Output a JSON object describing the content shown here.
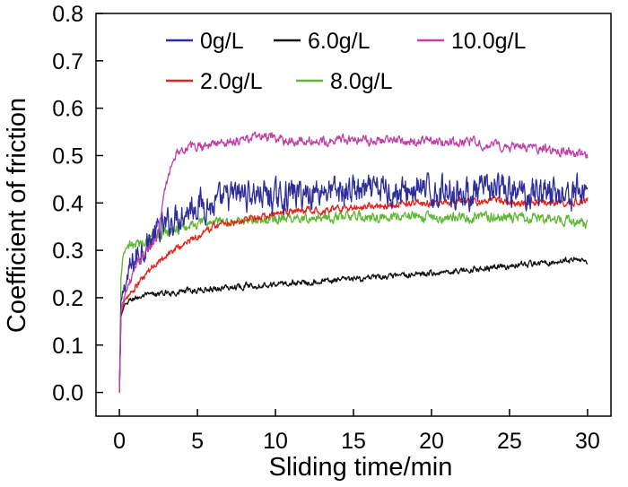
{
  "chart_data": {
    "type": "line",
    "title": "",
    "xlabel": "Sliding time/min",
    "ylabel": "Coefficient of friction",
    "xlim": [
      -1.5,
      31.5
    ],
    "ylim": [
      -0.05,
      0.8
    ],
    "xticks": [
      0,
      5,
      10,
      15,
      20,
      25,
      30
    ],
    "xtick_labels": [
      "0",
      "5",
      "10",
      "15",
      "20",
      "25",
      "30"
    ],
    "yticks": [
      0.0,
      0.1,
      0.2,
      0.3,
      0.4,
      0.5,
      0.6,
      0.7,
      0.8
    ],
    "ytick_labels": [
      "0.0",
      "0.1",
      "0.2",
      "0.3",
      "0.4",
      "0.5",
      "0.6",
      "0.7",
      "0.8"
    ],
    "grid": false,
    "legend_position": "top",
    "series": [
      {
        "name": "0g/L",
        "color": "#2e2e9a",
        "x": [
          0,
          0.1,
          0.3,
          0.5,
          1,
          1.5,
          2,
          2.5,
          3,
          3.5,
          4,
          4.5,
          5,
          5.5,
          6,
          7,
          8,
          9,
          10,
          11,
          12,
          13,
          14,
          15,
          16,
          17,
          18,
          19,
          20,
          21,
          22,
          23,
          24,
          25,
          26,
          27,
          28,
          29,
          30
        ],
        "y": [
          0.0,
          0.18,
          0.22,
          0.24,
          0.28,
          0.31,
          0.32,
          0.34,
          0.35,
          0.37,
          0.38,
          0.39,
          0.4,
          0.4,
          0.39,
          0.41,
          0.42,
          0.42,
          0.41,
          0.42,
          0.42,
          0.43,
          0.42,
          0.43,
          0.42,
          0.43,
          0.42,
          0.43,
          0.42,
          0.43,
          0.42,
          0.42,
          0.43,
          0.42,
          0.42,
          0.43,
          0.42,
          0.42,
          0.43
        ],
        "noise": 0.035
      },
      {
        "name": "6.0g/L",
        "color": "#111111",
        "x": [
          0,
          0.1,
          0.3,
          0.5,
          1,
          2,
          3,
          4,
          5,
          6,
          7,
          8,
          9,
          10,
          11,
          12,
          13,
          14,
          15,
          16,
          17,
          18,
          19,
          20,
          21,
          22,
          23,
          24,
          25,
          26,
          27,
          28,
          29,
          30
        ],
        "y": [
          0.0,
          0.16,
          0.18,
          0.19,
          0.2,
          0.205,
          0.21,
          0.213,
          0.216,
          0.219,
          0.222,
          0.225,
          0.227,
          0.229,
          0.231,
          0.233,
          0.235,
          0.237,
          0.239,
          0.241,
          0.243,
          0.246,
          0.249,
          0.252,
          0.255,
          0.258,
          0.261,
          0.264,
          0.267,
          0.27,
          0.273,
          0.277,
          0.28,
          0.279
        ],
        "noise": 0.007
      },
      {
        "name": "10.0g/L",
        "color": "#c040a8",
        "x": [
          0,
          0.1,
          0.3,
          0.5,
          1,
          1.5,
          2,
          2.5,
          3,
          3.5,
          4,
          5,
          6,
          7,
          8,
          9,
          10,
          11,
          12,
          13,
          14,
          15,
          16,
          17,
          18,
          19,
          20,
          21,
          22,
          23,
          24,
          25,
          26,
          27,
          28,
          29,
          30
        ],
        "y": [
          0.0,
          0.17,
          0.2,
          0.22,
          0.26,
          0.29,
          0.31,
          0.34,
          0.44,
          0.5,
          0.515,
          0.52,
          0.525,
          0.53,
          0.535,
          0.54,
          0.535,
          0.53,
          0.53,
          0.53,
          0.535,
          0.535,
          0.53,
          0.535,
          0.53,
          0.53,
          0.53,
          0.525,
          0.53,
          0.525,
          0.52,
          0.52,
          0.515,
          0.515,
          0.51,
          0.505,
          0.5
        ],
        "noise": 0.011
      },
      {
        "name": "2.0g/L",
        "color": "#e8231b",
        "x": [
          0,
          0.1,
          0.3,
          0.5,
          1,
          1.5,
          2,
          2.5,
          3,
          4,
          5,
          6,
          7,
          8,
          9,
          10,
          11,
          12,
          13,
          14,
          15,
          16,
          17,
          18,
          19,
          20,
          21,
          22,
          23,
          24,
          25,
          26,
          27,
          28,
          29,
          30
        ],
        "y": [
          0.0,
          0.17,
          0.19,
          0.2,
          0.22,
          0.24,
          0.26,
          0.28,
          0.29,
          0.31,
          0.33,
          0.35,
          0.36,
          0.365,
          0.37,
          0.375,
          0.38,
          0.385,
          0.385,
          0.39,
          0.39,
          0.395,
          0.395,
          0.4,
          0.4,
          0.4,
          0.4,
          0.405,
          0.4,
          0.405,
          0.4,
          0.4,
          0.4,
          0.4,
          0.4,
          0.41
        ],
        "noise": 0.009
      },
      {
        "name": "8.0g/L",
        "color": "#5fb833",
        "x": [
          0,
          0.1,
          0.2,
          0.4,
          0.7,
          1,
          1.5,
          2,
          2.5,
          3,
          4,
          5,
          6,
          7,
          8,
          9,
          10,
          11,
          12,
          13,
          14,
          15,
          16,
          17,
          18,
          19,
          20,
          21,
          22,
          23,
          24,
          25,
          26,
          27,
          28,
          29,
          30
        ],
        "y": [
          0.0,
          0.24,
          0.28,
          0.3,
          0.31,
          0.31,
          0.32,
          0.33,
          0.335,
          0.34,
          0.35,
          0.355,
          0.36,
          0.36,
          0.365,
          0.365,
          0.365,
          0.37,
          0.37,
          0.37,
          0.37,
          0.37,
          0.37,
          0.37,
          0.37,
          0.37,
          0.37,
          0.37,
          0.37,
          0.37,
          0.37,
          0.37,
          0.37,
          0.365,
          0.365,
          0.36,
          0.355
        ],
        "noise": 0.012
      }
    ],
    "legend_rows": [
      [
        "0g/L",
        "6.0g/L",
        "10.0g/L"
      ],
      [
        "2.0g/L",
        "8.0g/L"
      ]
    ]
  }
}
